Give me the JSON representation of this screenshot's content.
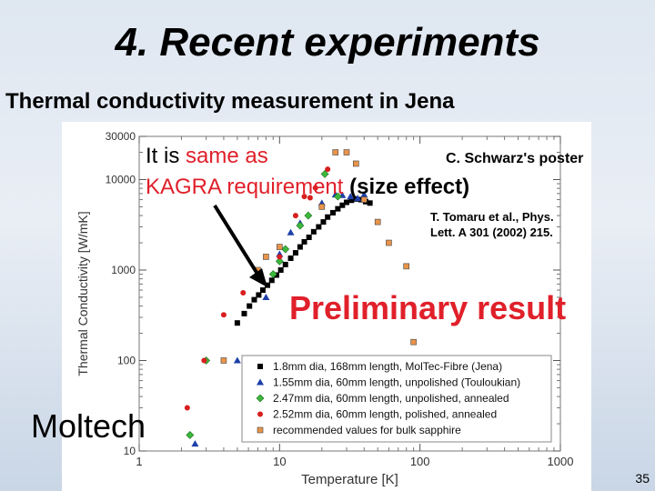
{
  "slide": {
    "title": "4. Recent experiments",
    "subtitle": "Thermal conductivity measurement in Jena",
    "slide_number": "35"
  },
  "annotations": {
    "same_as_prefix": "It is ",
    "same_as_red": "same as",
    "kagra_red": "KAGRA requirement",
    "kagra_bold": " (size effect)",
    "poster": "C. Schwarz's poster",
    "citation": "T. Tomaru et al., Phys. Lett. A 301 (2002) 215.",
    "preliminary": "Preliminary result",
    "lab": "Moltech"
  },
  "colors": {
    "accent_red": "#e0202a",
    "series_black": "#000000",
    "series_blue": "#1c3fa8",
    "series_green": "#3cb83c",
    "series_red": "#d81e1e",
    "series_orange": "#e8944a"
  },
  "chart_data": {
    "type": "scatter",
    "xlabel": "Temperature [K]",
    "ylabel": "Thermal Conductivity [W/mK]",
    "x_scale": "log",
    "y_scale": "log",
    "xlim": [
      1,
      1000
    ],
    "ylim": [
      10,
      30000
    ],
    "x_ticks": [
      "1",
      "10",
      "100",
      "1000"
    ],
    "y_ticks": [
      "10",
      "100",
      "1000",
      "10000",
      "30000"
    ],
    "legend_position": "bottom-right",
    "series": [
      {
        "name": "1.8mm dia, 168mm length, MolTec-Fibre (Jena)",
        "marker": "square",
        "color": "#000000",
        "x": [
          5.0,
          5.6,
          6.1,
          6.6,
          7.1,
          7.6,
          8.2,
          8.8,
          9.5,
          10.2,
          11.0,
          12.0,
          13.0,
          14.0,
          15.0,
          16.2,
          17.5,
          19.0,
          20.5,
          22.0,
          24.0,
          26.0,
          28.0,
          30.0,
          32.5,
          35.0,
          38.0,
          41.0,
          44.0
        ],
        "y": [
          260,
          330,
          400,
          470,
          530,
          600,
          680,
          770,
          880,
          1000,
          1150,
          1350,
          1550,
          1800,
          2050,
          2300,
          2650,
          3000,
          3400,
          3850,
          4300,
          4750,
          5200,
          5600,
          5900,
          6100,
          6000,
          5700,
          5500
        ]
      },
      {
        "name": "1.55mm dia, 60mm length, unpolished (Touloukian)",
        "marker": "triangle",
        "color": "#1c3fa8",
        "x": [
          2.5,
          5.0,
          8.0,
          10.0,
          12.0,
          14.0,
          20.0,
          25.0,
          28.0,
          32.0,
          36.0,
          40.0
        ],
        "y": [
          12,
          100,
          500,
          1500,
          2600,
          3300,
          5500,
          6800,
          6700,
          6500,
          6200,
          6800
        ]
      },
      {
        "name": "2.47mm dia, 60mm length, unpolished, annealed",
        "marker": "diamond",
        "color": "#3cb83c",
        "x": [
          2.3,
          3.0,
          9.0,
          10.0,
          11.0,
          14.0,
          16.0,
          21.0,
          26.0
        ],
        "y": [
          15,
          100,
          900,
          1250,
          1700,
          3100,
          4000,
          11500,
          6500
        ]
      },
      {
        "name": "2.52mm dia, 60mm length, polished, annealed",
        "marker": "circle",
        "color": "#d81e1e",
        "x": [
          2.2,
          2.9,
          4.0,
          5.5,
          7.5,
          10.0,
          13.0,
          15.0,
          16.5,
          18.0,
          22.0
        ],
        "y": [
          30,
          100,
          320,
          560,
          780,
          1400,
          4000,
          6500,
          6300,
          8100,
          13000
        ]
      },
      {
        "name": "recommended values for bulk sapphire",
        "marker": "square",
        "color": "#e8944a",
        "x": [
          4.0,
          7.0,
          8.0,
          10.0,
          20.0,
          25.0,
          30.0,
          35.0,
          40.0,
          50.0,
          60.0,
          80.0,
          90.0
        ],
        "y": [
          100,
          1000,
          1400,
          1800,
          5000,
          20000,
          20000,
          15000,
          6000,
          3400,
          2000,
          1100,
          160
        ]
      }
    ]
  }
}
